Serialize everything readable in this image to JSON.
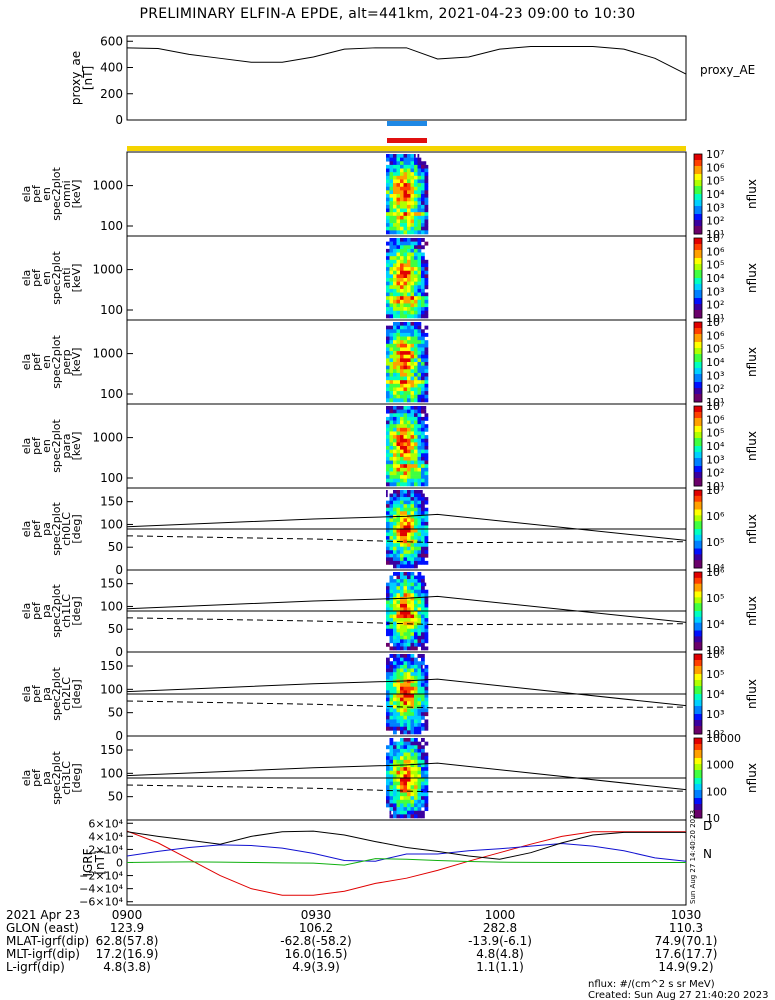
{
  "title": "PRELIMINARY ELFIN-A EPDE, alt=441km, 2021-04-23 09:00 to 10:30",
  "proxy_panel": {
    "ylabel": "proxy_ae [nT]",
    "ylabel_lines": [
      "proxy_ae",
      "[nT]"
    ],
    "legend": "proxy_AE",
    "yticks": [
      "600",
      "400",
      "200",
      "0"
    ],
    "ytick_values": [
      600,
      400,
      200,
      0
    ],
    "ylim": [
      0,
      640
    ]
  },
  "energy_panels": [
    {
      "label_lines": [
        "ela",
        "pef",
        "en",
        "spec2plot",
        "omni",
        "[keV]"
      ],
      "yticks": [
        "1000",
        "100"
      ],
      "cb_label": "nflux",
      "cb_ticks": [
        "10⁷",
        "10⁶",
        "10⁵",
        "10⁴",
        "10³",
        "10²",
        "10¹"
      ]
    },
    {
      "label_lines": [
        "ela",
        "pef",
        "en",
        "spec2plot",
        "anti",
        "[keV]"
      ],
      "yticks": [
        "1000",
        "100"
      ],
      "cb_label": "nflux",
      "cb_ticks": [
        "10⁷",
        "10⁶",
        "10⁵",
        "10⁴",
        "10³",
        "10²",
        "10¹"
      ]
    },
    {
      "label_lines": [
        "ela",
        "pef",
        "en",
        "spec2plot",
        "perp",
        "[keV]"
      ],
      "yticks": [
        "1000",
        "100"
      ],
      "cb_label": "nflux",
      "cb_ticks": [
        "10⁷",
        "10⁶",
        "10⁵",
        "10⁴",
        "10³",
        "10²",
        "10¹"
      ]
    },
    {
      "label_lines": [
        "ela",
        "pef",
        "en",
        "spec2plot",
        "para",
        "[keV]"
      ],
      "yticks": [
        "1000",
        "100"
      ],
      "cb_label": "nflux",
      "cb_ticks": [
        "10⁷",
        "10⁶",
        "10⁵",
        "10⁴",
        "10³",
        "10²",
        "10¹"
      ]
    }
  ],
  "pitch_panels": [
    {
      "label_lines": [
        "ela",
        "pef",
        "pa",
        "spec2plot",
        "ch0LC",
        "[deg]"
      ],
      "yticks": [
        "150",
        "100",
        "50",
        "0"
      ],
      "cb_label": "nflux",
      "cb_ticks": [
        "10⁷",
        "10⁶",
        "10⁵",
        "10⁴"
      ]
    },
    {
      "label_lines": [
        "ela",
        "pef",
        "pa",
        "spec2plot",
        "ch1LC",
        "[deg]"
      ],
      "yticks": [
        "150",
        "100",
        "50",
        "0"
      ],
      "cb_label": "nflux",
      "cb_ticks": [
        "10⁶",
        "10⁵",
        "10⁴",
        "10³"
      ]
    },
    {
      "label_lines": [
        "ela",
        "pef",
        "pa",
        "spec2plot",
        "ch2LC",
        "[deg]"
      ],
      "yticks": [
        "150",
        "100",
        "50",
        "0"
      ],
      "cb_label": "nflux",
      "cb_ticks": [
        "10⁶",
        "10⁵",
        "10⁴",
        "10³",
        "10²"
      ]
    },
    {
      "label_lines": [
        "ela",
        "pef",
        "pa",
        "spec2plot",
        "ch3LC",
        "[deg]"
      ],
      "yticks": [
        "150",
        "100",
        "50"
      ],
      "cb_label": "nflux",
      "cb_ticks": [
        "10000",
        "1000",
        "100",
        "10"
      ]
    }
  ],
  "igrf_panel": {
    "label_lines": [
      "IGRF",
      "[nT]"
    ],
    "yticks": [
      "6×10⁴",
      "4×10⁴",
      "2×10⁴",
      "0",
      "−2×10⁴",
      "−4×10⁴",
      "−6×10⁴"
    ],
    "ytick_values": [
      60000,
      40000,
      20000,
      0,
      -20000,
      -40000,
      -60000
    ],
    "ylim": [
      -65000,
      65000
    ],
    "legend": [
      "D",
      "N"
    ],
    "side_note": "Sun Aug 27 14:40:20 2023"
  },
  "ephemeris": {
    "rows": [
      {
        "label": "2021 Apr 23",
        "values": [
          "0900",
          "0930",
          "1000",
          "1030"
        ]
      },
      {
        "label": "GLON (east)",
        "values": [
          "123.9",
          "106.2",
          "282.8",
          "110.3"
        ]
      },
      {
        "label": "MLAT-igrf(dip)",
        "values": [
          "62.8(57.8)",
          "-62.8(-58.2)",
          "-13.9(-6.1)",
          "74.9(70.1)"
        ]
      },
      {
        "label": "MLT-igrf(dip)",
        "values": [
          "17.2(16.9)",
          "16.0(16.5)",
          "4.8(4.8)",
          "17.6(17.7)"
        ]
      },
      {
        "label": "L-igrf(dip)",
        "values": [
          "4.8(3.8)",
          "4.9(3.9)",
          "1.1(1.1)",
          "14.9(9.2)"
        ]
      }
    ]
  },
  "footer": {
    "units": "nflux: #/(cm^2 s sr MeV)",
    "created": "Created: Sun Aug 27 21:40:20 2023"
  },
  "colors": {
    "ae_line": "#000000",
    "blue_bar": "#1e88e5",
    "red_bar": "#e01010",
    "yellow_bar": "#f5d400",
    "igrf_black": "#000000",
    "igrf_red": "#e00000",
    "igrf_blue": "#1010d0",
    "igrf_green": "#10b010",
    "d_label": "#e00000",
    "n_label": "#10b010"
  },
  "chart_data": [
    {
      "type": "line",
      "name": "proxy_ae",
      "x_minutes": [
        0,
        5,
        10,
        15,
        20,
        25,
        30,
        35,
        40,
        45,
        50,
        55,
        60,
        65,
        70,
        75,
        80,
        85,
        90
      ],
      "values": [
        550,
        545,
        500,
        470,
        440,
        440,
        480,
        540,
        550,
        550,
        465,
        480,
        540,
        560,
        560,
        560,
        540,
        470,
        350
      ],
      "xlabel": "",
      "ylabel": "proxy_ae [nT]",
      "ylim": [
        0,
        640
      ]
    },
    {
      "type": "line",
      "name": "igrf",
      "x_minutes": [
        0,
        5,
        10,
        15,
        20,
        25,
        30,
        35,
        40,
        45,
        50,
        55,
        60,
        65,
        70,
        75,
        80,
        85,
        90
      ],
      "series": [
        {
          "name": "D",
          "values": [
            48000,
            30000,
            5000,
            -20000,
            -40000,
            -50000,
            -50000,
            -44000,
            -32000,
            -24000,
            -12000,
            2000,
            15000,
            28000,
            40000,
            47000,
            47000,
            47000,
            47000
          ]
        },
        {
          "name": "N",
          "values": [
            10000,
            17000,
            23000,
            27000,
            26000,
            22000,
            14000,
            3000,
            2000,
            13000,
            13000,
            18000,
            21000,
            25000,
            29000,
            25000,
            18000,
            7000,
            2000
          ]
        },
        {
          "name": "black",
          "values": [
            47000,
            40000,
            34000,
            28000,
            40000,
            47000,
            48000,
            42000,
            32000,
            23000,
            17000,
            10000,
            5000,
            15000,
            30000,
            42000,
            46000,
            46000,
            46000
          ]
        },
        {
          "name": "green",
          "values": [
            0,
            500,
            1000,
            500,
            0,
            -500,
            -1000,
            -4000,
            6000,
            5000,
            3000,
            1500,
            500,
            200,
            0,
            0,
            0,
            0,
            0
          ]
        }
      ],
      "ylim": [
        -65000,
        65000
      ]
    },
    {
      "type": "line",
      "name": "loss_cone",
      "x_minutes": [
        0,
        30,
        45,
        50,
        90
      ],
      "series": [
        {
          "name": "solid",
          "values": [
            95,
            112,
            118,
            122,
            65
          ]
        },
        {
          "name": "dashed",
          "values": [
            75,
            68,
            62,
            60,
            62
          ]
        },
        {
          "name": "level",
          "values": [
            90,
            90,
            90,
            90,
            90
          ]
        }
      ],
      "ylim": [
        0,
        180
      ]
    }
  ]
}
